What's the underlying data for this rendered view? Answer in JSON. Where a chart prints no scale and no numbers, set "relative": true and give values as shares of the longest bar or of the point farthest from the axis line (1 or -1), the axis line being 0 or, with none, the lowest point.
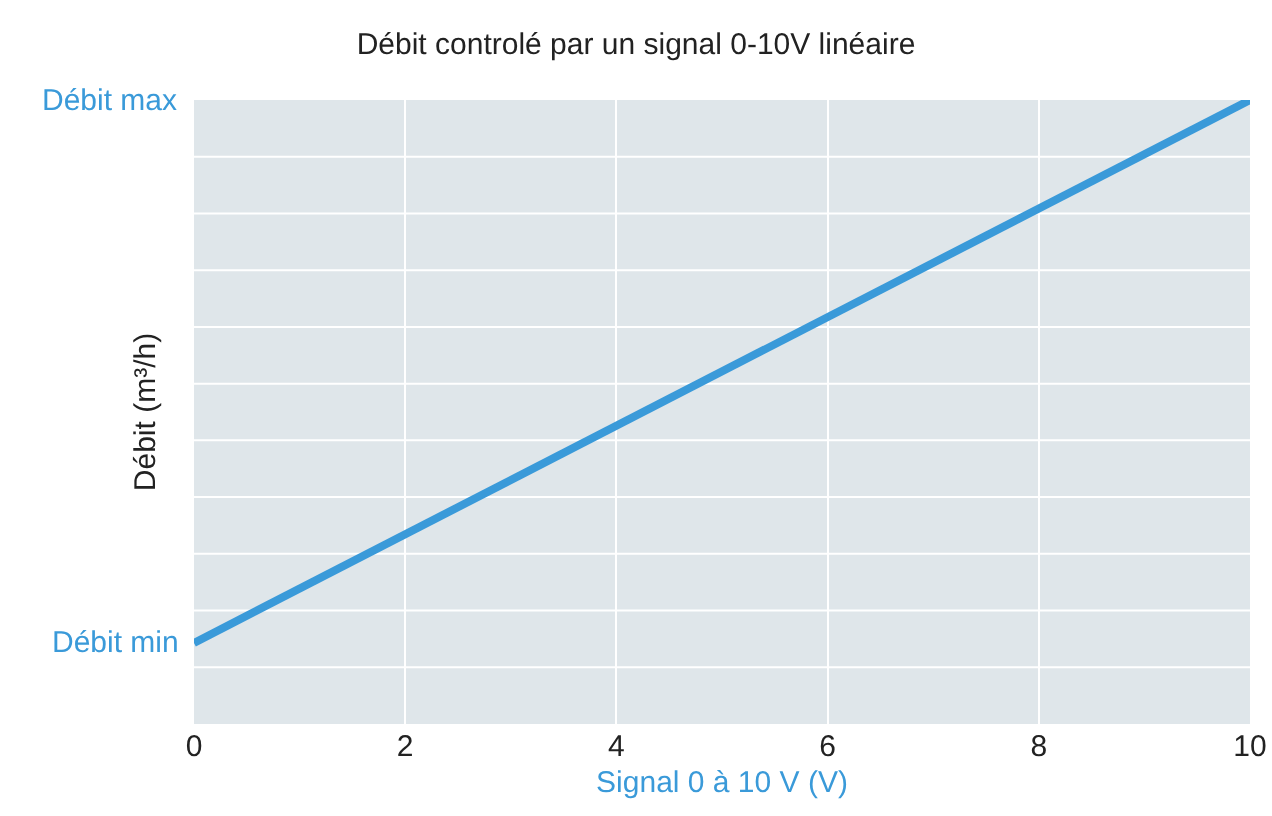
{
  "chart_data": {
    "type": "line",
    "title": "Débit controlé par un signal 0-10V linéaire",
    "xlabel": "Signal 0 à 10 V (V)",
    "ylabel": "Débit (m³/h)",
    "x": [
      0,
      10
    ],
    "series": [
      {
        "color": "#3a9ad9",
        "values": [
          0.13,
          1
        ]
      }
    ],
    "relative": true,
    "xlim": [
      0,
      10
    ],
    "xticks": [
      0,
      2,
      4,
      6,
      8,
      10
    ],
    "annotations": [
      "Débit min",
      "Débit max"
    ],
    "grid": true,
    "marker": "none",
    "line_style": "solid"
  }
}
